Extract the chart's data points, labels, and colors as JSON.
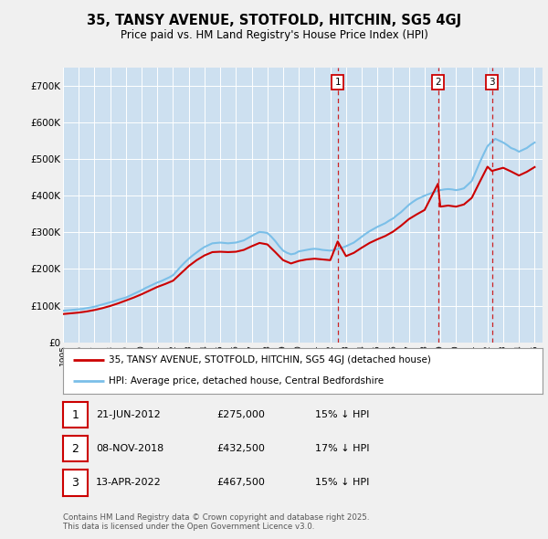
{
  "title": "35, TANSY AVENUE, STOTFOLD, HITCHIN, SG5 4GJ",
  "subtitle": "Price paid vs. HM Land Registry's House Price Index (HPI)",
  "fig_bg_color": "#f0f0f0",
  "plot_bg_color": "#cde0f0",
  "ylabel": "",
  "ylim": [
    0,
    750000
  ],
  "yticks": [
    0,
    100000,
    200000,
    300000,
    400000,
    500000,
    600000,
    700000
  ],
  "ytick_labels": [
    "£0",
    "£100K",
    "£200K",
    "£300K",
    "£400K",
    "£500K",
    "£600K",
    "£700K"
  ],
  "hpi_color": "#7bbfe8",
  "price_color": "#cc0000",
  "vline_color": "#cc0000",
  "legend_house": "35, TANSY AVENUE, STOTFOLD, HITCHIN, SG5 4GJ (detached house)",
  "legend_hpi": "HPI: Average price, detached house, Central Bedfordshire",
  "transactions": [
    {
      "num": 1,
      "date": "21-JUN-2012",
      "price": 275000,
      "pct": "15% ↓ HPI",
      "year": 2012.47
    },
    {
      "num": 2,
      "date": "08-NOV-2018",
      "price": 432500,
      "pct": "17% ↓ HPI",
      "year": 2018.85
    },
    {
      "num": 3,
      "date": "13-APR-2022",
      "price": 467500,
      "pct": "15% ↓ HPI",
      "year": 2022.28
    }
  ],
  "footer": "Contains HM Land Registry data © Crown copyright and database right 2025.\nThis data is licensed under the Open Government Licence v3.0.",
  "hpi_x": [
    1995,
    1995.25,
    1995.5,
    1995.75,
    1996,
    1996.25,
    1996.5,
    1996.75,
    1997,
    1997.25,
    1997.5,
    1997.75,
    1998,
    1998.25,
    1998.5,
    1998.75,
    1999,
    1999.25,
    1999.5,
    1999.75,
    2000,
    2000.25,
    2000.5,
    2000.75,
    2001,
    2001.25,
    2001.5,
    2001.75,
    2002,
    2002.25,
    2002.5,
    2002.75,
    2003,
    2003.25,
    2003.5,
    2003.75,
    2004,
    2004.25,
    2004.5,
    2004.75,
    2005,
    2005.25,
    2005.5,
    2005.75,
    2006,
    2006.25,
    2006.5,
    2006.75,
    2007,
    2007.25,
    2007.5,
    2007.75,
    2008,
    2008.25,
    2008.5,
    2008.75,
    2009,
    2009.25,
    2009.5,
    2009.75,
    2010,
    2010.25,
    2010.5,
    2010.75,
    2011,
    2011.25,
    2011.5,
    2011.75,
    2012,
    2012.25,
    2012.5,
    2012.75,
    2013,
    2013.25,
    2013.5,
    2013.75,
    2014,
    2014.25,
    2014.5,
    2014.75,
    2015,
    2015.25,
    2015.5,
    2015.75,
    2016,
    2016.25,
    2016.5,
    2016.75,
    2017,
    2017.25,
    2017.5,
    2017.75,
    2018,
    2018.25,
    2018.5,
    2018.75,
    2019,
    2019.25,
    2019.5,
    2019.75,
    2020,
    2020.25,
    2020.5,
    2020.75,
    2021,
    2021.25,
    2021.5,
    2021.75,
    2022,
    2022.25,
    2022.5,
    2022.75,
    2023,
    2023.25,
    2023.5,
    2023.75,
    2024,
    2024.25,
    2024.5,
    2024.75,
    2025
  ],
  "hpi_y": [
    86000,
    87000,
    88000,
    89000,
    90000,
    91000,
    93000,
    95000,
    97000,
    100000,
    103000,
    106000,
    109000,
    112000,
    116000,
    119000,
    122000,
    127000,
    132000,
    137000,
    142000,
    148000,
    153000,
    158000,
    163000,
    167000,
    172000,
    177000,
    183000,
    195000,
    207000,
    218000,
    228000,
    237000,
    245000,
    253000,
    260000,
    265000,
    270000,
    271000,
    272000,
    271000,
    270000,
    271000,
    272000,
    275000,
    278000,
    284000,
    290000,
    296000,
    301000,
    300000,
    298000,
    288000,
    276000,
    262000,
    250000,
    244000,
    240000,
    242000,
    248000,
    250000,
    252000,
    254000,
    255000,
    254000,
    252000,
    251000,
    250000,
    252000,
    255000,
    258000,
    262000,
    267000,
    272000,
    280000,
    288000,
    296000,
    303000,
    309000,
    315000,
    320000,
    325000,
    332000,
    338000,
    347000,
    355000,
    365000,
    375000,
    383000,
    390000,
    395000,
    400000,
    404000,
    408000,
    412000,
    415000,
    417000,
    418000,
    417000,
    415000,
    417000,
    420000,
    430000,
    440000,
    465000,
    490000,
    513000,
    535000,
    546000,
    555000,
    550000,
    545000,
    538000,
    530000,
    526000,
    520000,
    525000,
    530000,
    538000,
    545000
  ],
  "price_x": [
    1995,
    1995.5,
    1996,
    1996.5,
    1997,
    1997.5,
    1998,
    1998.5,
    1999,
    1999.5,
    2000,
    2000.5,
    2001,
    2001.5,
    2002,
    2002.5,
    2003,
    2003.5,
    2004,
    2004.5,
    2005,
    2005.5,
    2006,
    2006.5,
    2007,
    2007.5,
    2008,
    2008.5,
    2009,
    2009.5,
    2010,
    2010.5,
    2011,
    2011.5,
    2012,
    2012.47,
    2013,
    2013.5,
    2014,
    2014.5,
    2015,
    2015.5,
    2016,
    2016.5,
    2017,
    2017.5,
    2018,
    2018.85,
    2019,
    2019.5,
    2020,
    2020.5,
    2021,
    2021.5,
    2022,
    2022.28,
    2023,
    2023.5,
    2024,
    2024.5,
    2025
  ],
  "price_y": [
    77000,
    79000,
    81000,
    84000,
    88000,
    93000,
    99000,
    106000,
    114000,
    122000,
    131000,
    141000,
    151000,
    159000,
    168000,
    188000,
    208000,
    224000,
    237000,
    246000,
    247000,
    246000,
    247000,
    252000,
    262000,
    271000,
    267000,
    246000,
    224000,
    215000,
    222000,
    226000,
    228000,
    226000,
    224000,
    275000,
    235000,
    244000,
    258000,
    271000,
    281000,
    290000,
    302000,
    318000,
    336000,
    349000,
    361000,
    432500,
    370000,
    373000,
    370000,
    376000,
    394000,
    437000,
    479000,
    467500,
    476000,
    466000,
    455000,
    465000,
    478000
  ]
}
